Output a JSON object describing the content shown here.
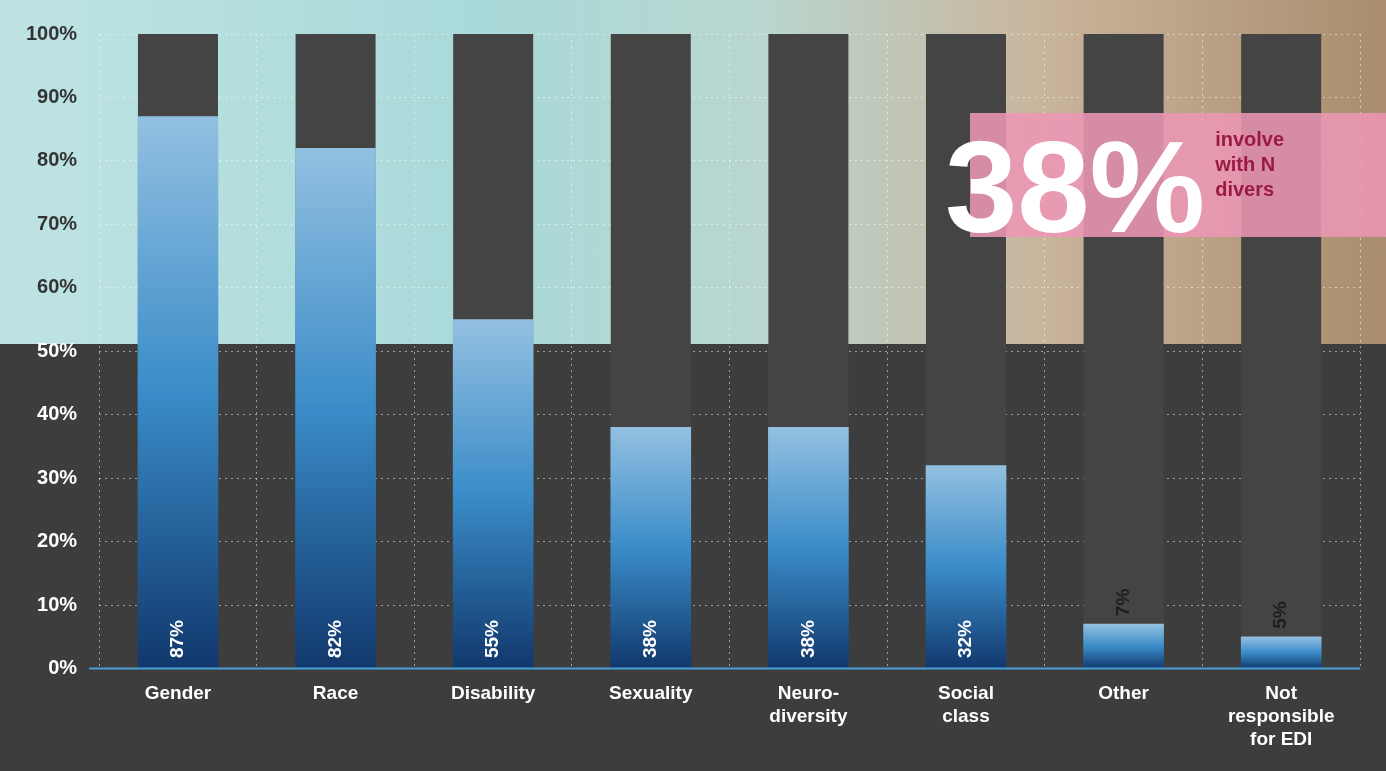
{
  "chart_data": {
    "type": "bar",
    "categories": [
      "Gender",
      "Race",
      "Disability",
      "Sexuality",
      "Neuro-\ndiversity",
      "Social\nclass",
      "Other",
      "Not\nresponsible\nfor EDI"
    ],
    "values": [
      87,
      82,
      55,
      38,
      38,
      32,
      7,
      5
    ],
    "value_labels": [
      "87%",
      "82%",
      "55%",
      "38%",
      "38%",
      "32%",
      "7%",
      "5%"
    ],
    "data_labels": true,
    "color": "#3a8cc8",
    "ylim": [
      0,
      100
    ],
    "yticks": [
      {
        "value": 0,
        "label": "0%"
      },
      {
        "value": 10,
        "label": "10%"
      },
      {
        "value": 20,
        "label": "20%"
      },
      {
        "value": 30,
        "label": "30%"
      },
      {
        "value": 40,
        "label": "40%"
      },
      {
        "value": 50,
        "label": "50%"
      },
      {
        "value": 60,
        "label": "60%"
      },
      {
        "value": 70,
        "label": "70%"
      },
      {
        "value": 80,
        "label": "80%"
      },
      {
        "value": 90,
        "label": "90%"
      },
      {
        "value": 100,
        "label": "100%"
      }
    ],
    "grid": true,
    "annotations": [
      {
        "label": "38%",
        "text": "involve\nwith N\ndivers"
      }
    ]
  }
}
